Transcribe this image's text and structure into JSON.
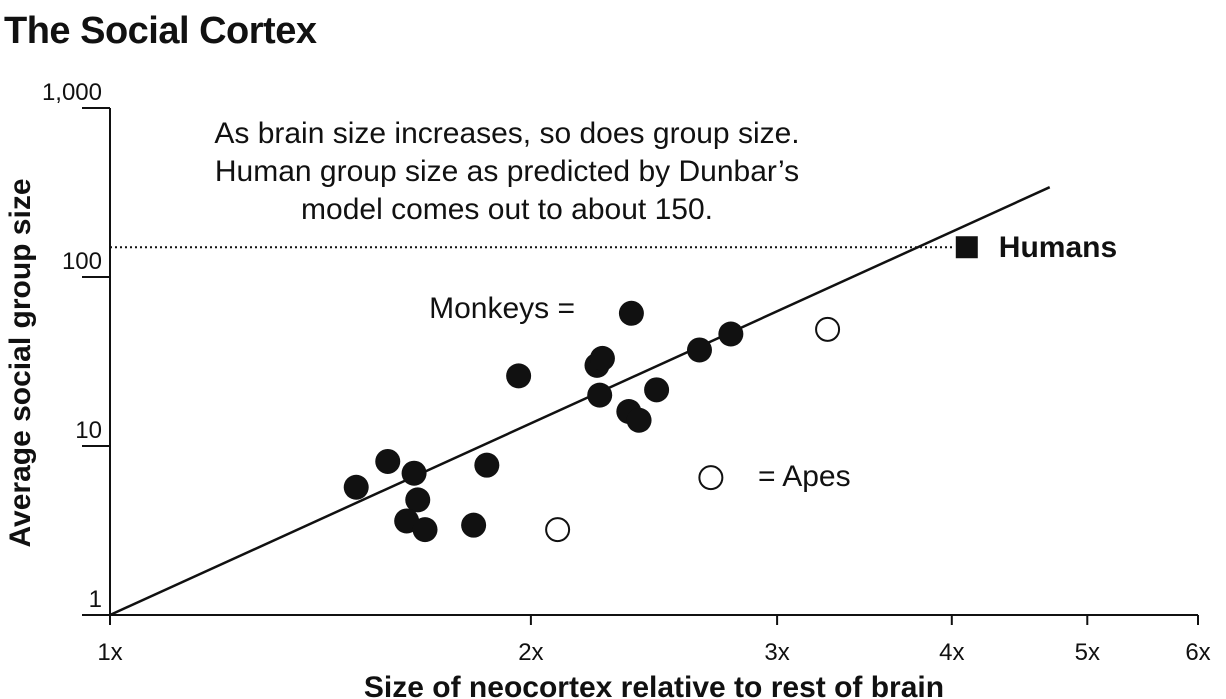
{
  "chart_data": {
    "type": "scatter",
    "title": "The Social Cortex",
    "xlabel": "Size of neocortex relative to rest of brain",
    "ylabel": "Average social group size",
    "x_scale": "log",
    "y_scale": "log",
    "xlim": [
      1,
      6
    ],
    "ylim": [
      1,
      1000
    ],
    "x_ticks": [
      1,
      2,
      3,
      4,
      5,
      6
    ],
    "x_tick_labels": [
      "1x",
      "2x",
      "3x",
      "4x",
      "5x",
      "6x"
    ],
    "y_ticks": [
      1,
      10,
      100,
      1000
    ],
    "y_tick_labels": [
      "1",
      "10",
      "100",
      "1,000"
    ],
    "annotation": [
      "As brain size increases, so does group size.",
      "Human group size as predicted by Dunbar’s",
      "model comes out to about 150."
    ],
    "regression_line": {
      "from": [
        1,
        1
      ],
      "to": [
        4.7,
        340
      ]
    },
    "reference_line": {
      "y": 150
    },
    "legend": {
      "monkeys_label": "Monkeys =",
      "apes_label": "= Apes"
    },
    "series": [
      {
        "name": "Monkeys",
        "marker": "filled-circle",
        "points": [
          {
            "x": 1.5,
            "y": 5.7
          },
          {
            "x": 1.58,
            "y": 8.1
          },
          {
            "x": 1.65,
            "y": 6.9
          },
          {
            "x": 1.66,
            "y": 4.8
          },
          {
            "x": 1.63,
            "y": 3.6
          },
          {
            "x": 1.68,
            "y": 3.2
          },
          {
            "x": 1.82,
            "y": 3.4
          },
          {
            "x": 1.86,
            "y": 7.7
          },
          {
            "x": 1.96,
            "y": 26
          },
          {
            "x": 2.23,
            "y": 30
          },
          {
            "x": 2.25,
            "y": 33
          },
          {
            "x": 2.24,
            "y": 20
          },
          {
            "x": 2.35,
            "y": 16
          },
          {
            "x": 2.39,
            "y": 14.2
          },
          {
            "x": 2.46,
            "y": 21.5
          },
          {
            "x": 2.36,
            "y": 61
          },
          {
            "x": 2.64,
            "y": 37
          },
          {
            "x": 2.78,
            "y": 46
          }
        ]
      },
      {
        "name": "Apes",
        "marker": "open-circle",
        "points": [
          {
            "x": 2.09,
            "y": 3.2
          },
          {
            "x": 2.69,
            "y": 6.5
          },
          {
            "x": 3.26,
            "y": 49
          }
        ]
      },
      {
        "name": "Humans",
        "label": "Humans",
        "marker": "filled-square",
        "points": [
          {
            "x": 4.1,
            "y": 150
          }
        ]
      }
    ]
  }
}
